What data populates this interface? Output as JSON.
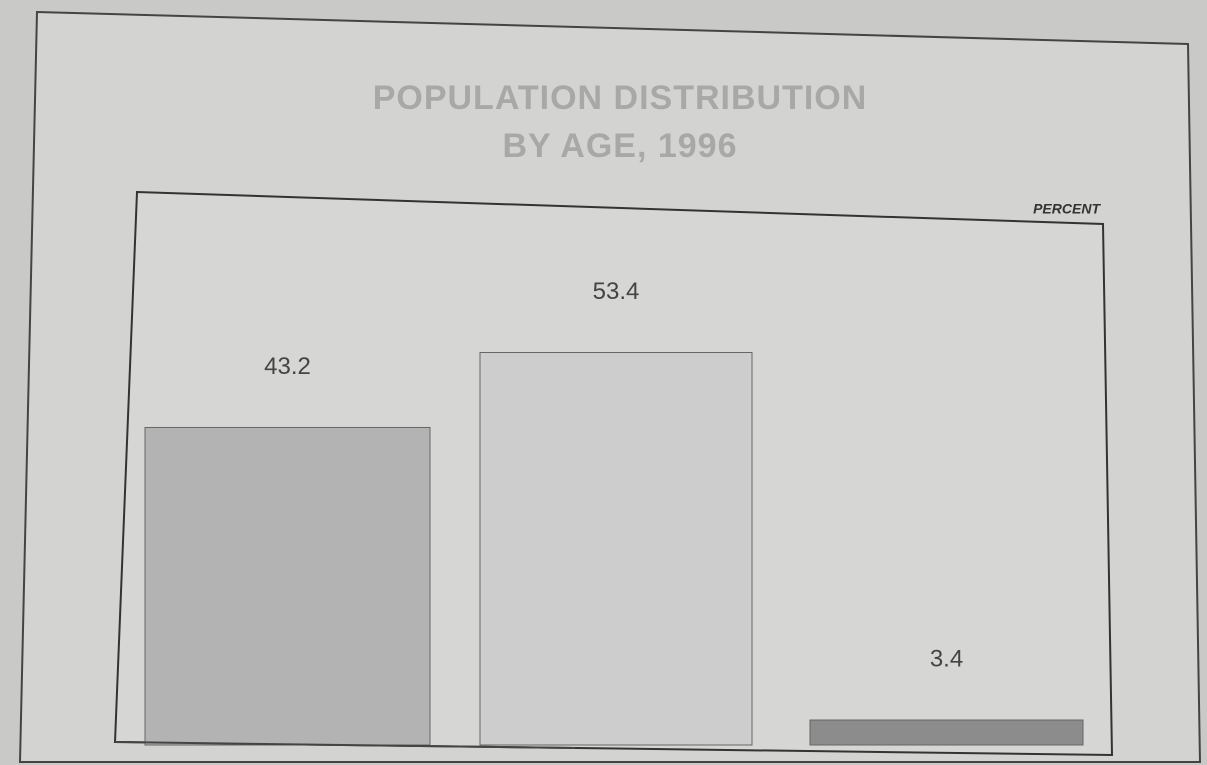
{
  "chart_data": {
    "type": "bar",
    "title": [
      "POPULATION DISTRIBUTION",
      "BY AGE, 1996"
    ],
    "y_label": "PERCENT",
    "categories": [
      null,
      null,
      null
    ],
    "values": [
      43.2,
      53.4,
      3.4
    ],
    "colors": [
      "#b3b3b3",
      "#cdcdcd",
      "#8c8c8c"
    ]
  }
}
